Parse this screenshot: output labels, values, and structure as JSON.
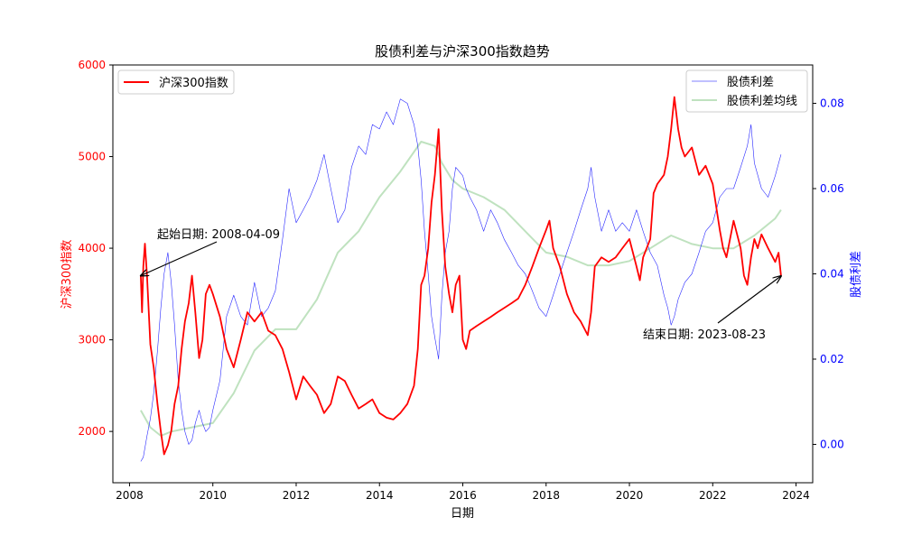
{
  "chart_data": {
    "type": "line",
    "title": "股债利差与沪深300指数趋势",
    "xlabel": "日期",
    "ylabel_left": "沪深300指数",
    "ylabel_right": "股债利差",
    "x_ticks": [
      "2008",
      "2010",
      "2012",
      "2014",
      "2016",
      "2018",
      "2020",
      "2022",
      "2024"
    ],
    "xlim": [
      2007.6,
      2024.4
    ],
    "ylim_left": [
      1440,
      6000
    ],
    "yticks_left": [
      2000,
      3000,
      4000,
      5000,
      6000
    ],
    "ylim_right": [
      -0.009,
      0.089
    ],
    "yticks_right": [
      "0.00",
      "0.02",
      "0.04",
      "0.06",
      "0.08"
    ],
    "grid": false,
    "colors": {
      "index": "#ff0000",
      "spread": "#0000ff",
      "spread_ma": "#2ca02c",
      "left_axis": "#ff0000",
      "right_axis": "#0000ff"
    },
    "legend_left": {
      "position": "top-left",
      "entries": [
        {
          "label": "沪深300指数",
          "color": "#ff0000"
        }
      ]
    },
    "legend_right": {
      "position": "top-right",
      "entries": [
        {
          "label": "股债利差",
          "color": "#0000ff"
        },
        {
          "label": "股债利差均线",
          "color": "#2ca02c"
        }
      ]
    },
    "annotations": [
      {
        "text": "起始日期: 2008-04-09",
        "target": [
          2008.27,
          3700
        ],
        "axis": "left"
      },
      {
        "text": "结束日期: 2023-08-23",
        "target": [
          2023.64,
          0.0395
        ],
        "axis": "right"
      }
    ],
    "series": [
      {
        "name": "沪深300指数",
        "axis": "left",
        "x": [
          2008.27,
          2008.3,
          2008.33,
          2008.37,
          2008.42,
          2008.5,
          2008.58,
          2008.67,
          2008.75,
          2008.83,
          2008.92,
          2009.0,
          2009.08,
          2009.17,
          2009.25,
          2009.33,
          2009.42,
          2009.5,
          2009.58,
          2009.67,
          2009.75,
          2009.83,
          2009.92,
          2010.0,
          2010.17,
          2010.33,
          2010.5,
          2010.67,
          2010.83,
          2011.0,
          2011.17,
          2011.33,
          2011.5,
          2011.67,
          2011.83,
          2012.0,
          2012.17,
          2012.33,
          2012.5,
          2012.67,
          2012.83,
          2013.0,
          2013.17,
          2013.33,
          2013.5,
          2013.67,
          2013.83,
          2014.0,
          2014.17,
          2014.33,
          2014.5,
          2014.67,
          2014.83,
          2014.92,
          2015.0,
          2015.08,
          2015.17,
          2015.25,
          2015.33,
          2015.42,
          2015.5,
          2015.58,
          2015.67,
          2015.75,
          2015.83,
          2015.92,
          2016.0,
          2016.08,
          2016.17,
          2016.33,
          2016.5,
          2016.67,
          2016.83,
          2017.0,
          2017.17,
          2017.33,
          2017.5,
          2017.67,
          2017.83,
          2018.0,
          2018.08,
          2018.17,
          2018.33,
          2018.5,
          2018.67,
          2018.83,
          2019.0,
          2019.08,
          2019.17,
          2019.33,
          2019.5,
          2019.67,
          2019.83,
          2020.0,
          2020.17,
          2020.25,
          2020.33,
          2020.5,
          2020.58,
          2020.67,
          2020.83,
          2020.92,
          2021.0,
          2021.08,
          2021.17,
          2021.25,
          2021.33,
          2021.5,
          2021.67,
          2021.83,
          2022.0,
          2022.17,
          2022.25,
          2022.33,
          2022.5,
          2022.67,
          2022.75,
          2022.83,
          2022.92,
          2023.0,
          2023.08,
          2023.17,
          2023.33,
          2023.5,
          2023.58,
          2023.64
        ],
        "values": [
          3700,
          3300,
          3800,
          4050,
          3700,
          2950,
          2700,
          2300,
          2000,
          1750,
          1850,
          2000,
          2300,
          2500,
          2900,
          3200,
          3400,
          3700,
          3300,
          2800,
          3000,
          3500,
          3600,
          3500,
          3250,
          2900,
          2700,
          3000,
          3300,
          3200,
          3300,
          3100,
          3050,
          2900,
          2650,
          2350,
          2600,
          2500,
          2400,
          2200,
          2300,
          2600,
          2550,
          2400,
          2250,
          2300,
          2350,
          2200,
          2150,
          2130,
          2200,
          2300,
          2500,
          2900,
          3600,
          3700,
          4000,
          4500,
          4800,
          5300,
          4400,
          3800,
          3500,
          3300,
          3600,
          3700,
          3000,
          2900,
          3100,
          3150,
          3200,
          3250,
          3300,
          3350,
          3400,
          3450,
          3600,
          3800,
          4000,
          4200,
          4300,
          4000,
          3800,
          3500,
          3300,
          3200,
          3050,
          3300,
          3800,
          3900,
          3850,
          3900,
          4000,
          4100,
          3800,
          3650,
          3900,
          4100,
          4600,
          4700,
          4800,
          5000,
          5300,
          5650,
          5300,
          5100,
          5000,
          5100,
          4800,
          4900,
          4700,
          4200,
          4000,
          3900,
          4300,
          4000,
          3700,
          3600,
          3900,
          4100,
          4000,
          4150,
          4000,
          3850,
          3950,
          3700
        ]
      },
      {
        "name": "股债利差",
        "axis": "right",
        "x": [
          2008.27,
          2008.33,
          2008.42,
          2008.5,
          2008.58,
          2008.67,
          2008.75,
          2008.83,
          2008.92,
          2009.0,
          2009.08,
          2009.17,
          2009.25,
          2009.33,
          2009.42,
          2009.5,
          2009.58,
          2009.67,
          2009.75,
          2009.83,
          2009.92,
          2010.0,
          2010.17,
          2010.33,
          2010.5,
          2010.67,
          2010.83,
          2011.0,
          2011.17,
          2011.33,
          2011.5,
          2011.67,
          2011.83,
          2012.0,
          2012.17,
          2012.33,
          2012.5,
          2012.67,
          2012.83,
          2013.0,
          2013.17,
          2013.33,
          2013.5,
          2013.67,
          2013.83,
          2014.0,
          2014.17,
          2014.33,
          2014.5,
          2014.67,
          2014.83,
          2014.92,
          2015.0,
          2015.08,
          2015.17,
          2015.25,
          2015.33,
          2015.42,
          2015.5,
          2015.58,
          2015.67,
          2015.75,
          2015.83,
          2016.0,
          2016.08,
          2016.17,
          2016.33,
          2016.5,
          2016.67,
          2016.83,
          2017.0,
          2017.17,
          2017.33,
          2017.5,
          2017.67,
          2017.83,
          2018.0,
          2018.17,
          2018.33,
          2018.5,
          2018.67,
          2018.83,
          2019.0,
          2019.08,
          2019.17,
          2019.33,
          2019.5,
          2019.67,
          2019.83,
          2020.0,
          2020.17,
          2020.33,
          2020.5,
          2020.67,
          2020.83,
          2020.92,
          2021.0,
          2021.08,
          2021.17,
          2021.33,
          2021.5,
          2021.67,
          2021.83,
          2022.0,
          2022.17,
          2022.33,
          2022.5,
          2022.67,
          2022.83,
          2022.92,
          2023.0,
          2023.17,
          2023.33,
          2023.5,
          2023.64
        ],
        "values": [
          -0.004,
          -0.003,
          0.002,
          0.006,
          0.012,
          0.022,
          0.032,
          0.04,
          0.045,
          0.038,
          0.028,
          0.015,
          0.008,
          0.003,
          0.0,
          0.001,
          0.005,
          0.008,
          0.005,
          0.003,
          0.004,
          0.008,
          0.015,
          0.03,
          0.035,
          0.03,
          0.028,
          0.038,
          0.03,
          0.032,
          0.036,
          0.048,
          0.06,
          0.052,
          0.055,
          0.058,
          0.062,
          0.068,
          0.06,
          0.052,
          0.055,
          0.065,
          0.07,
          0.068,
          0.075,
          0.074,
          0.078,
          0.075,
          0.081,
          0.08,
          0.075,
          0.07,
          0.062,
          0.05,
          0.04,
          0.03,
          0.025,
          0.02,
          0.035,
          0.045,
          0.05,
          0.06,
          0.065,
          0.063,
          0.06,
          0.058,
          0.055,
          0.05,
          0.055,
          0.052,
          0.048,
          0.045,
          0.042,
          0.04,
          0.036,
          0.032,
          0.03,
          0.035,
          0.04,
          0.045,
          0.05,
          0.055,
          0.06,
          0.065,
          0.058,
          0.05,
          0.055,
          0.05,
          0.052,
          0.05,
          0.055,
          0.05,
          0.045,
          0.042,
          0.035,
          0.032,
          0.028,
          0.03,
          0.034,
          0.038,
          0.04,
          0.045,
          0.05,
          0.052,
          0.058,
          0.06,
          0.06,
          0.065,
          0.07,
          0.075,
          0.066,
          0.06,
          0.058,
          0.063,
          0.068
        ]
      },
      {
        "name": "股债利差均线",
        "axis": "right",
        "x": [
          2008.27,
          2008.5,
          2008.75,
          2009.0,
          2009.5,
          2010.0,
          2010.5,
          2011.0,
          2011.5,
          2012.0,
          2012.5,
          2013.0,
          2013.5,
          2014.0,
          2014.5,
          2015.0,
          2015.33,
          2015.5,
          2015.75,
          2016.0,
          2016.5,
          2017.0,
          2017.5,
          2018.0,
          2018.5,
          2019.0,
          2019.5,
          2020.0,
          2020.5,
          2020.83,
          2021.0,
          2021.5,
          2022.0,
          2022.5,
          2023.0,
          2023.5,
          2023.64
        ],
        "values": [
          0.008,
          0.004,
          0.002,
          0.003,
          0.004,
          0.005,
          0.012,
          0.022,
          0.027,
          0.027,
          0.034,
          0.045,
          0.05,
          0.058,
          0.064,
          0.071,
          0.07,
          0.066,
          0.062,
          0.06,
          0.058,
          0.055,
          0.05,
          0.045,
          0.044,
          0.042,
          0.042,
          0.043,
          0.046,
          0.048,
          0.049,
          0.047,
          0.046,
          0.046,
          0.049,
          0.053,
          0.055
        ]
      }
    ]
  }
}
